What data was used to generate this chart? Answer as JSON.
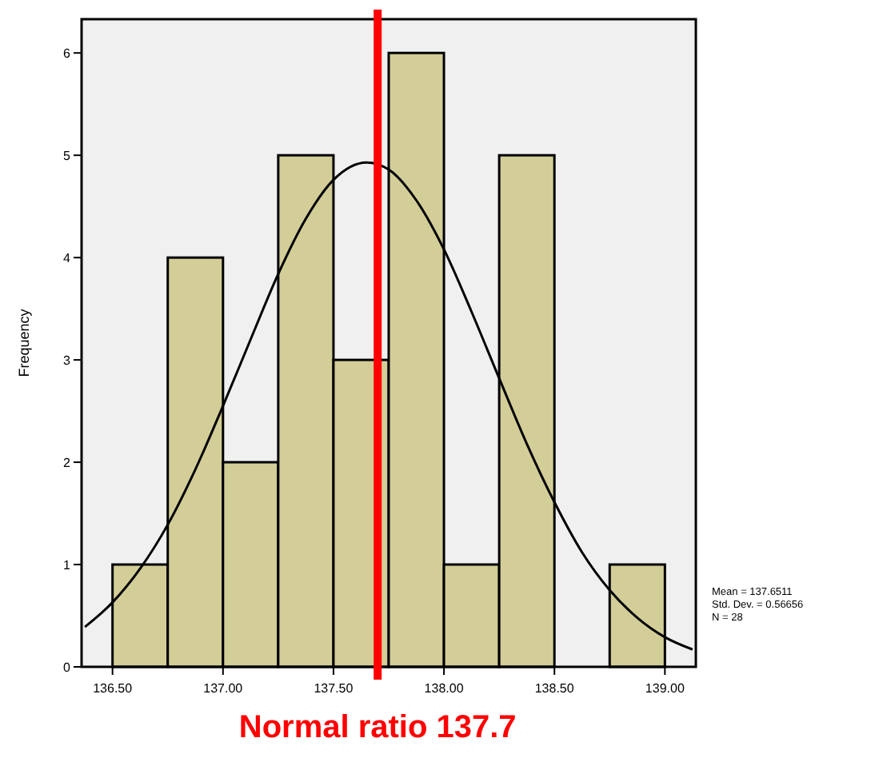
{
  "chart_data": {
    "type": "histogram",
    "ylabel": "Frequency",
    "bins": [
      136.5,
      136.75,
      137.0,
      137.25,
      137.5,
      137.75,
      138.0,
      138.25,
      138.5,
      138.75,
      139.0
    ],
    "values": [
      1,
      4,
      2,
      5,
      3,
      6,
      1,
      5,
      0,
      1
    ],
    "color": "#d3cd98",
    "series": [
      {
        "type": "line",
        "color": "#000000",
        "x": [
          136.375,
          136.5,
          136.625,
          136.75,
          136.875,
          137.0,
          137.125,
          137.25,
          137.375,
          137.5,
          137.65,
          137.75,
          137.875,
          138.0,
          138.125,
          138.25,
          138.375,
          138.5,
          138.625,
          138.75,
          138.875,
          139.0,
          139.125
        ],
        "values": [
          0.39,
          0.63,
          0.96,
          1.39,
          1.93,
          2.55,
          3.2,
          3.84,
          4.38,
          4.76,
          4.93,
          4.86,
          4.56,
          4.08,
          3.47,
          2.82,
          2.18,
          1.61,
          1.12,
          0.75,
          0.48,
          0.29,
          0.17
        ]
      }
    ],
    "xlim": [
      136.36,
      139.14
    ],
    "ylim": [
      0,
      6.33
    ],
    "xticks": [
      {
        "value": 136.5,
        "label": "136.50"
      },
      {
        "value": 137,
        "label": "137.00"
      },
      {
        "value": 137.5,
        "label": "137.50"
      },
      {
        "value": 138,
        "label": "138.00"
      },
      {
        "value": 138.5,
        "label": "138.50"
      },
      {
        "value": 139,
        "label": "139.00"
      }
    ],
    "yticks": [
      0,
      1,
      2,
      3,
      4,
      5,
      6
    ],
    "grid": false,
    "ref_lines": [
      {
        "axis": "x",
        "value": 137.7,
        "label": "Normal ratio 137.7",
        "color": "#ff0000"
      }
    ],
    "annotations": [
      "Mean = 137.6511",
      "Std. Dev. = 0.56656",
      "N = 28"
    ]
  }
}
